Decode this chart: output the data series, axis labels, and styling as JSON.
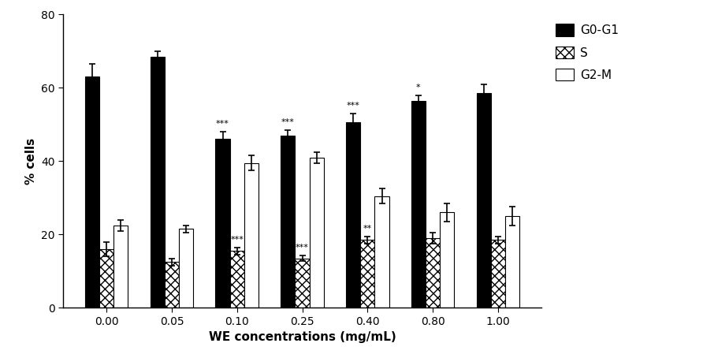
{
  "categories": [
    "0.00",
    "0.05",
    "0.10",
    "0.25",
    "0.40",
    "0.80",
    "1.00"
  ],
  "G0G1": [
    63.0,
    68.5,
    46.0,
    47.0,
    50.5,
    56.5,
    58.5
  ],
  "S": [
    16.0,
    12.5,
    15.5,
    13.5,
    18.5,
    19.0,
    18.5
  ],
  "G2M": [
    22.5,
    21.5,
    39.5,
    41.0,
    30.5,
    26.0,
    25.0
  ],
  "G0G1_err": [
    3.5,
    1.5,
    2.0,
    1.5,
    2.5,
    1.5,
    2.5
  ],
  "S_err": [
    2.0,
    1.0,
    1.0,
    0.8,
    1.0,
    1.5,
    1.0
  ],
  "G2M_err": [
    1.5,
    1.0,
    2.0,
    1.5,
    2.0,
    2.5,
    2.5
  ],
  "annot_G0G1": [
    null,
    null,
    "***",
    "***",
    "***",
    "*",
    null
  ],
  "annot_S": [
    null,
    null,
    "***",
    "***",
    "**",
    null,
    null
  ],
  "xlabel": "WE concentrations (mg/mL)",
  "ylabel": "% cells",
  "ylim": [
    0,
    80
  ],
  "yticks": [
    0,
    20,
    40,
    60,
    80
  ],
  "bar_width": 0.22,
  "legend_labels": [
    "G0-G1",
    "S",
    "G2-M"
  ],
  "background_color": "#ffffff",
  "figsize": [
    8.92,
    4.54
  ],
  "dpi": 100
}
